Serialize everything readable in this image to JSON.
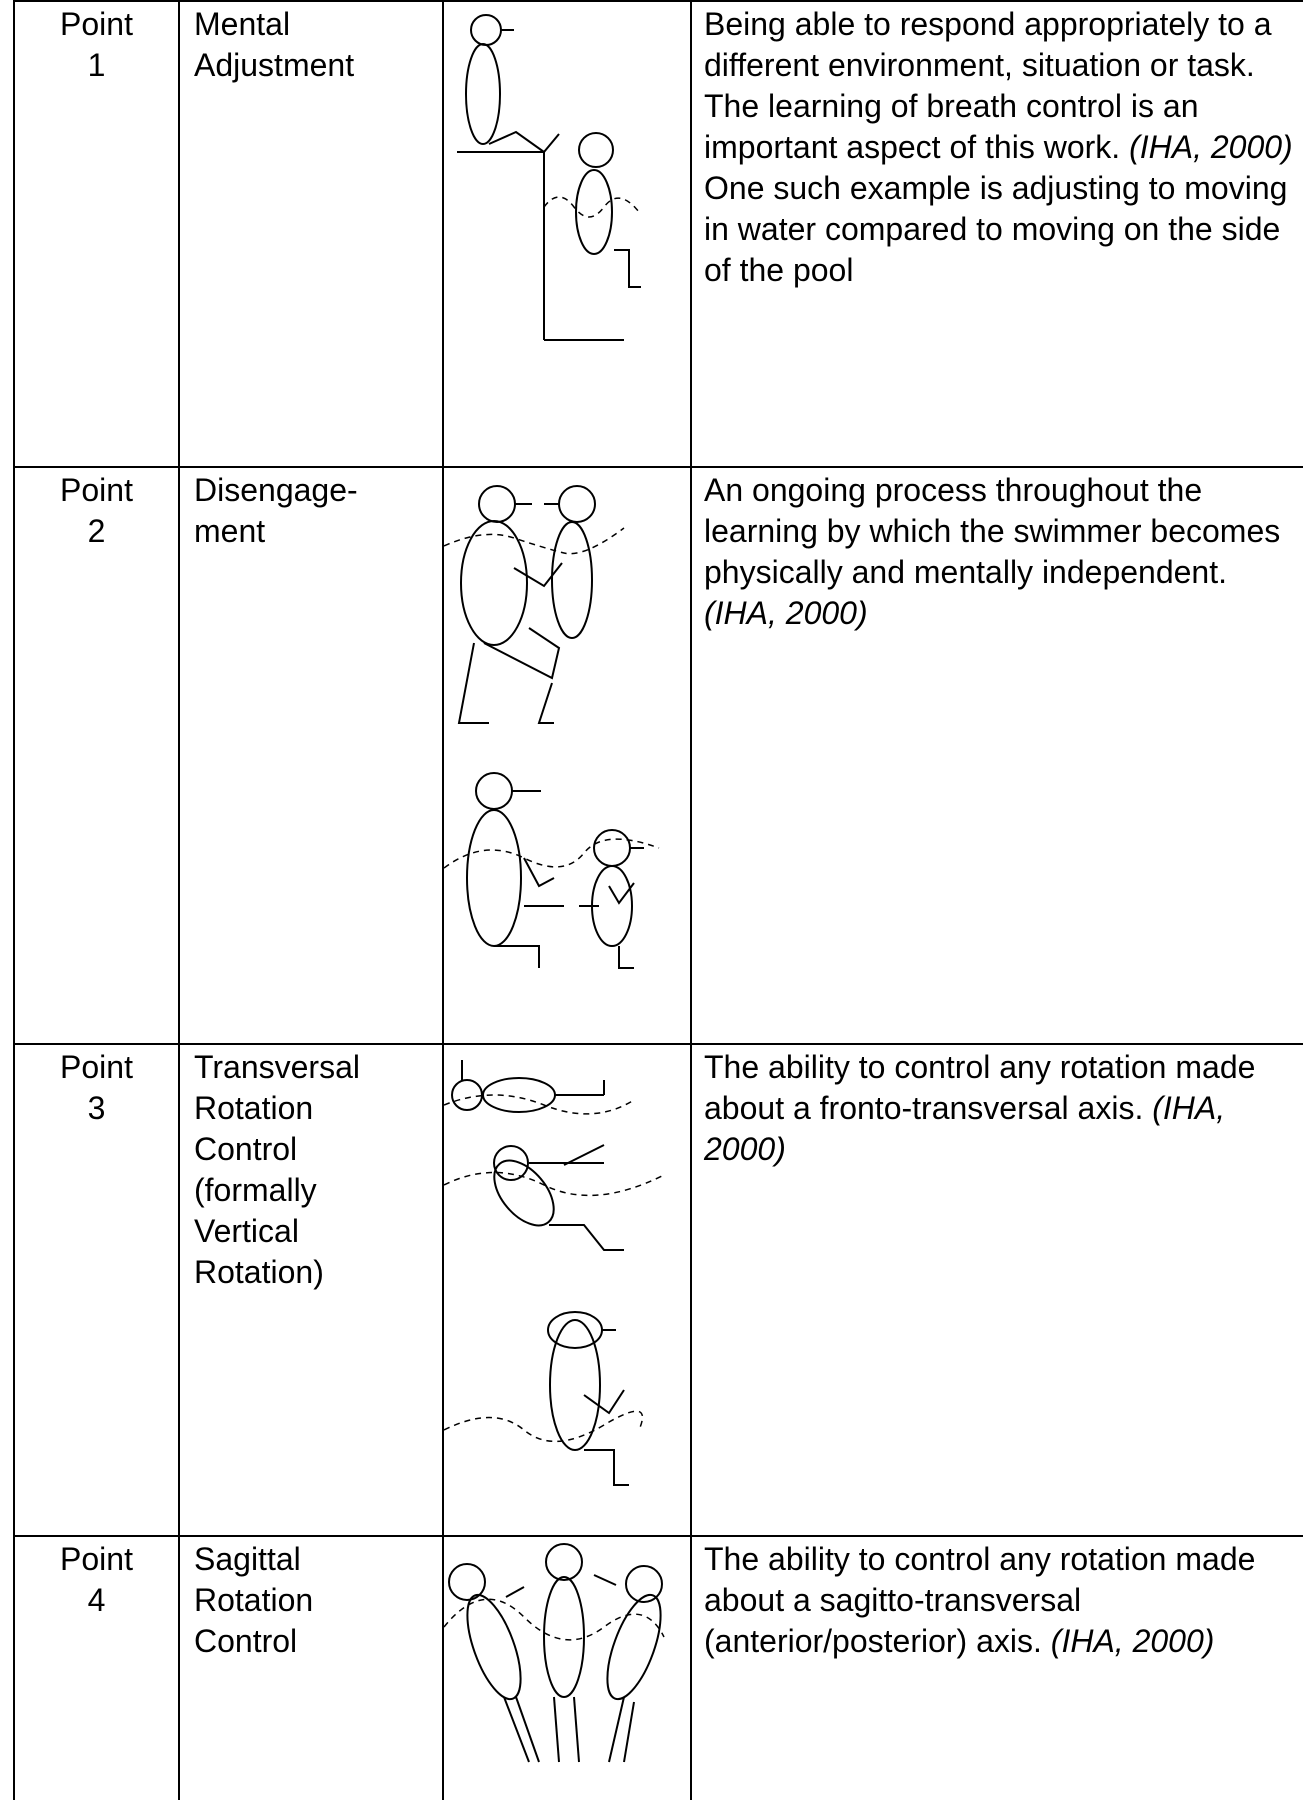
{
  "table": {
    "rows": [
      {
        "point": [
          "Point",
          "1"
        ],
        "name": [
          "Mental",
          "Adjustment"
        ],
        "description": [
          {
            "text": "Being able to respond appropriately to a different environment, situation or task. The learning of breath control is an important aspect of this work.",
            "cite": "(IHA, 2000)"
          },
          {
            "text": "One such example is adjusting to moving in water compared to moving on the side of the pool"
          }
        ]
      },
      {
        "point": [
          "Point",
          "2"
        ],
        "name": [
          "Disengage-",
          "ment"
        ],
        "description": [
          {
            "text": "An ongoing process throughout the learning by which the swimmer becomes physically and mentally independent.",
            "cite": "(IHA, 2000)"
          }
        ]
      },
      {
        "point": [
          "Point",
          "3"
        ],
        "name": [
          "Transversal",
          "Rotation",
          "Control",
          "(formally",
          "Vertical",
          "Rotation)"
        ],
        "description": [
          {
            "text": "The ability to control any rotation made about a fronto-transversal axis.",
            "cite": "(IHA, 2000)"
          }
        ]
      },
      {
        "point": [
          "Point",
          "4"
        ],
        "name": [
          "Sagittal",
          "Rotation",
          "Control"
        ],
        "description": [
          {
            "text": "The ability to control any rotation made about a sagitto-transversal  (anterior/posterior) axis.",
            "cite": "(IHA, 2000)"
          }
        ]
      }
    ]
  }
}
